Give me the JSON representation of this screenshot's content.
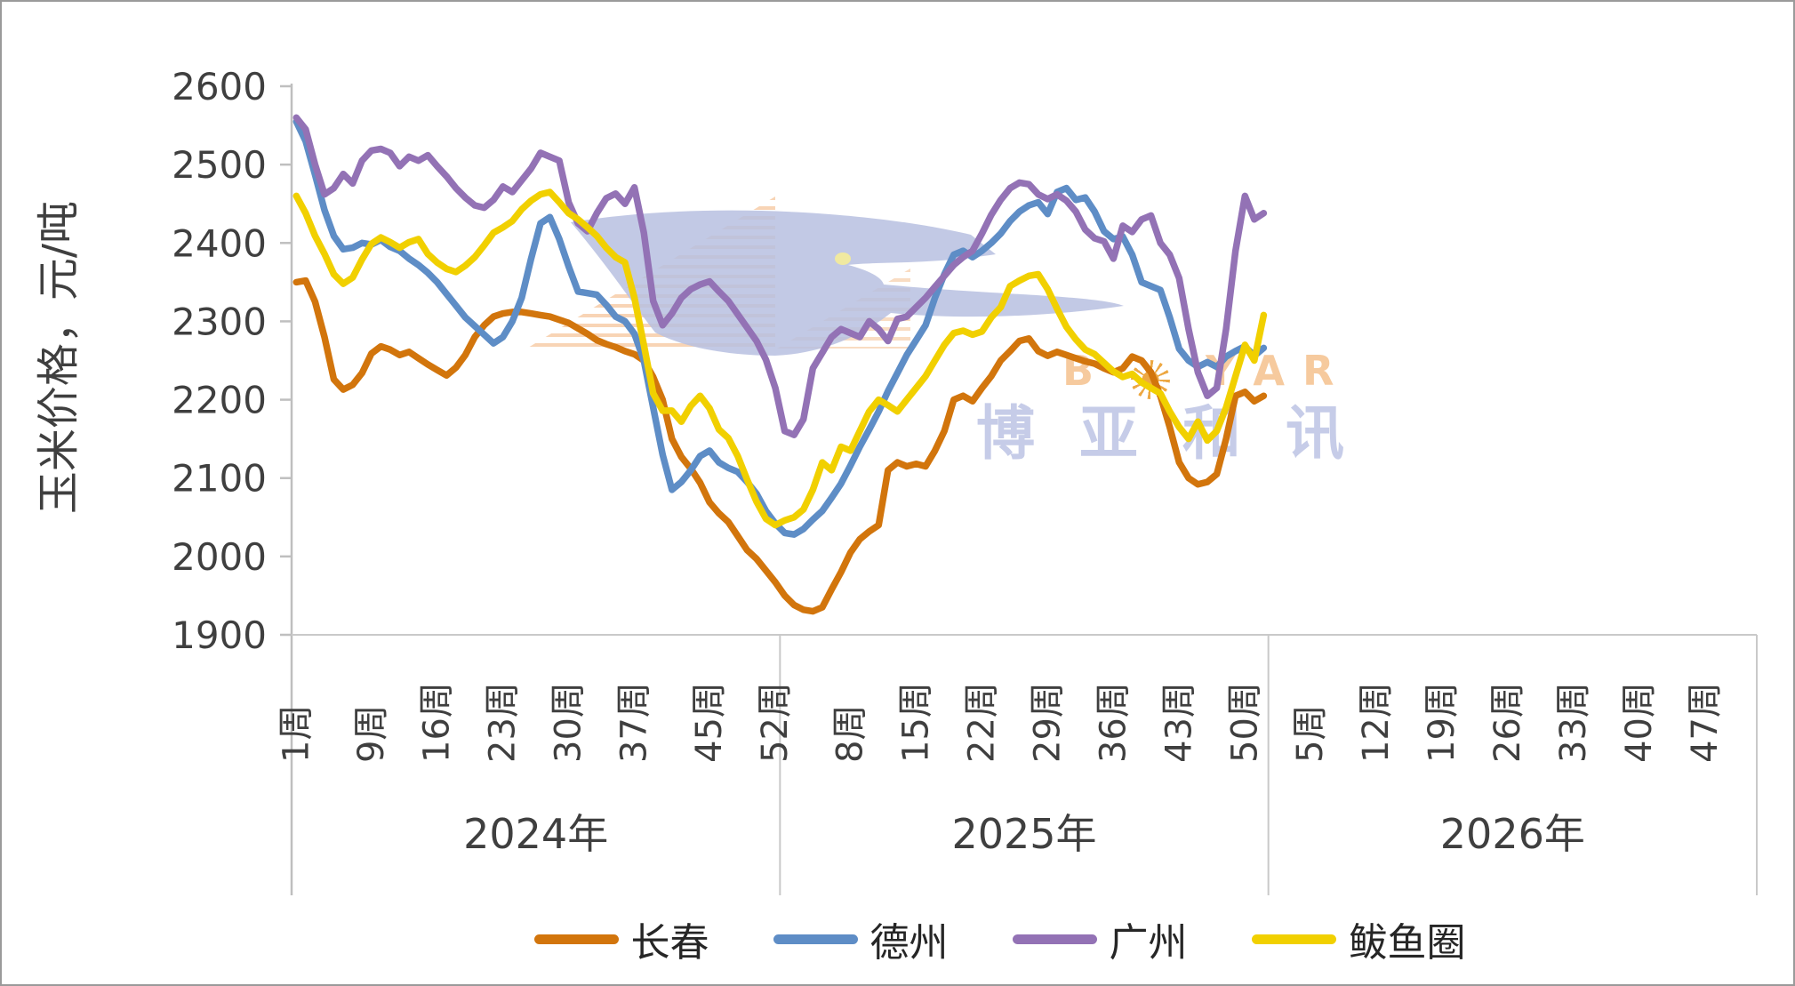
{
  "chart_data": {
    "type": "line",
    "title": "",
    "ylabel": "玉米价格，元/吨",
    "ylim": [
      1900,
      2600
    ],
    "ytick_interval": 100,
    "yticks": [
      2600,
      2500,
      2400,
      2300,
      2200,
      2100,
      2000,
      1900
    ],
    "grid": "baseline-only",
    "legend_position": "bottom-center",
    "x_axis": {
      "weeks_per_year": 52,
      "years": [
        {
          "label": "2024年",
          "week_tick_labels": [
            "1周",
            "9周",
            "16周",
            "23周",
            "30周",
            "37周",
            "45周",
            "52周"
          ]
        },
        {
          "label": "2025年",
          "week_tick_labels": [
            "8周",
            "15周",
            "22周",
            "29周",
            "36周",
            "43周",
            "50周"
          ]
        },
        {
          "label": "2026年",
          "week_tick_labels": [
            "5周",
            "12周",
            "19周",
            "26周",
            "33周",
            "40周",
            "47周"
          ]
        }
      ]
    },
    "series": [
      {
        "name": "长春",
        "color": "#D2750C",
        "start_year": 2024,
        "start_week": 1,
        "values": [
          2350,
          2352,
          2325,
          2280,
          2226,
          2213,
          2219,
          2234,
          2259,
          2268,
          2264,
          2257,
          2261,
          2253,
          2245,
          2238,
          2231,
          2241,
          2257,
          2280,
          2295,
          2306,
          2310,
          2312,
          2312,
          2310,
          2308,
          2306,
          2302,
          2298,
          2291,
          2284,
          2276,
          2271,
          2267,
          2262,
          2258,
          2250,
          2229,
          2200,
          2150,
          2127,
          2112,
          2094,
          2069,
          2055,
          2044,
          2026,
          2008,
          1997,
          1982,
          1967,
          1950,
          1938,
          1932,
          1930,
          1935,
          1958,
          1980,
          2005,
          2022,
          2032,
          2040,
          2110,
          2120,
          2115,
          2118,
          2115,
          2135,
          2160,
          2200,
          2205,
          2198,
          2215,
          2230,
          2250,
          2262,
          2275,
          2278,
          2262,
          2256,
          2261,
          2257,
          2253,
          2249,
          2246,
          2240,
          2235,
          2240,
          2255,
          2250,
          2235,
          2205,
          2165,
          2120,
          2100,
          2092,
          2095,
          2105,
          2150,
          2205,
          2210,
          2198,
          2205
        ]
      },
      {
        "name": "德州",
        "color": "#5E8DC6",
        "start_year": 2024,
        "start_week": 1,
        "values": [
          2555,
          2530,
          2487,
          2442,
          2409,
          2392,
          2394,
          2400,
          2398,
          2404,
          2395,
          2390,
          2380,
          2372,
          2362,
          2350,
          2335,
          2320,
          2305,
          2294,
          2283,
          2272,
          2280,
          2300,
          2330,
          2380,
          2425,
          2433,
          2405,
          2370,
          2338,
          2336,
          2334,
          2321,
          2306,
          2300,
          2284,
          2250,
          2190,
          2130,
          2085,
          2095,
          2110,
          2128,
          2135,
          2120,
          2113,
          2108,
          2095,
          2080,
          2058,
          2042,
          2030,
          2028,
          2035,
          2047,
          2058,
          2075,
          2093,
          2116,
          2140,
          2162,
          2185,
          2211,
          2234,
          2257,
          2276,
          2295,
          2330,
          2360,
          2385,
          2390,
          2382,
          2390,
          2400,
          2412,
          2428,
          2440,
          2448,
          2452,
          2437,
          2465,
          2470,
          2455,
          2458,
          2440,
          2415,
          2405,
          2408,
          2385,
          2350,
          2345,
          2340,
          2305,
          2265,
          2250,
          2242,
          2248,
          2242,
          2255,
          2262,
          2268,
          2256,
          2266
        ]
      },
      {
        "name": "广州",
        "color": "#9372B5",
        "start_year": 2024,
        "start_week": 1,
        "values": [
          2560,
          2545,
          2500,
          2462,
          2470,
          2488,
          2476,
          2505,
          2518,
          2520,
          2515,
          2498,
          2510,
          2505,
          2512,
          2498,
          2485,
          2470,
          2458,
          2448,
          2445,
          2455,
          2472,
          2465,
          2480,
          2495,
          2515,
          2510,
          2505,
          2452,
          2425,
          2415,
          2438,
          2457,
          2463,
          2450,
          2471,
          2413,
          2326,
          2295,
          2310,
          2330,
          2341,
          2347,
          2351,
          2338,
          2326,
          2309,
          2292,
          2275,
          2251,
          2215,
          2160,
          2155,
          2175,
          2240,
          2260,
          2280,
          2290,
          2285,
          2280,
          2300,
          2290,
          2275,
          2303,
          2306,
          2318,
          2330,
          2344,
          2358,
          2372,
          2382,
          2390,
          2412,
          2436,
          2455,
          2470,
          2477,
          2475,
          2462,
          2456,
          2462,
          2454,
          2440,
          2417,
          2406,
          2402,
          2380,
          2422,
          2414,
          2430,
          2435,
          2400,
          2385,
          2355,
          2290,
          2235,
          2205,
          2215,
          2290,
          2390,
          2460,
          2430,
          2438
        ]
      },
      {
        "name": "鲅鱼圈",
        "color": "#F1D000",
        "start_year": 2024,
        "start_week": 1,
        "values": [
          2460,
          2438,
          2409,
          2386,
          2360,
          2348,
          2356,
          2379,
          2399,
          2407,
          2401,
          2394,
          2401,
          2405,
          2386,
          2375,
          2367,
          2363,
          2371,
          2382,
          2397,
          2413,
          2420,
          2428,
          2443,
          2454,
          2462,
          2465,
          2452,
          2438,
          2430,
          2420,
          2409,
          2394,
          2382,
          2375,
          2330,
          2270,
          2208,
          2186,
          2186,
          2172,
          2192,
          2205,
          2189,
          2162,
          2151,
          2128,
          2098,
          2070,
          2048,
          2040,
          2046,
          2050,
          2060,
          2085,
          2120,
          2110,
          2140,
          2135,
          2160,
          2185,
          2200,
          2193,
          2185,
          2200,
          2215,
          2230,
          2250,
          2270,
          2285,
          2288,
          2283,
          2287,
          2305,
          2318,
          2345,
          2352,
          2358,
          2360,
          2341,
          2316,
          2293,
          2277,
          2264,
          2258,
          2247,
          2236,
          2229,
          2233,
          2222,
          2215,
          2208,
          2185,
          2165,
          2150,
          2172,
          2148,
          2160,
          2190,
          2230,
          2270,
          2250,
          2308
        ]
      }
    ]
  },
  "watermark": {
    "latin_before_sun": "B",
    "latin_after_sun": "Y A R",
    "cjk": "博亚和讯"
  },
  "style": {
    "axis_line_color": "#BFBFBF",
    "baseline_color": "#C9C9C9",
    "separator_color": "#C9C9C9",
    "text_color": "#3f3f3f"
  }
}
